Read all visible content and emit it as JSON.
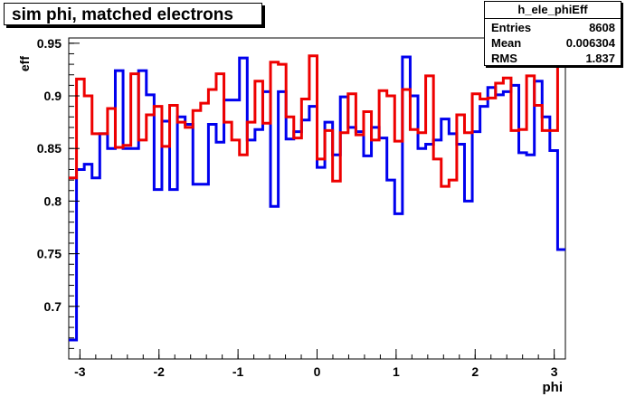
{
  "title": "sim phi, matched electrons",
  "stats": {
    "name": "h_ele_phiEff",
    "rows": [
      {
        "label": "Entries",
        "value": "8608"
      },
      {
        "label": "Mean",
        "value": "0.006304"
      },
      {
        "label": "RMS",
        "value": "1.837"
      }
    ]
  },
  "colors": {
    "series_blue": "#0000ee",
    "series_red": "#ee0000",
    "axis": "#000000"
  },
  "chart_data": {
    "type": "line",
    "step": true,
    "xlabel": "phi",
    "ylabel": "eff",
    "xlim": [
      -3.1416,
      3.1416
    ],
    "ylim": [
      0.65,
      0.955
    ],
    "xticks": [
      -3,
      -2,
      -1,
      0,
      1,
      2,
      3
    ],
    "xtick_labels": [
      "-3",
      "-2",
      "-1",
      "0",
      "1",
      "2",
      "3"
    ],
    "yticks": [
      0.7,
      0.75,
      0.8,
      0.85,
      0.9,
      0.95
    ],
    "ytick_labels": [
      "0.7",
      "0.75",
      "0.8",
      "0.85",
      "0.9",
      "0.95"
    ],
    "bins": 64,
    "series": [
      {
        "color": "#0000ee",
        "values": [
          0.668,
          0.83,
          0.835,
          0.822,
          0.864,
          0.85,
          0.924,
          0.85,
          0.85,
          0.924,
          0.901,
          0.811,
          0.876,
          0.811,
          0.88,
          0.873,
          0.816,
          0.816,
          0.873,
          0.856,
          0.896,
          0.896,
          0.936,
          0.858,
          0.868,
          0.904,
          0.795,
          0.904,
          0.859,
          0.866,
          0.877,
          0.89,
          0.832,
          0.875,
          0.844,
          0.899,
          0.87,
          0.866,
          0.843,
          0.87,
          0.86,
          0.82,
          0.788,
          0.937,
          0.9,
          0.85,
          0.854,
          0.858,
          0.878,
          0.864,
          0.854,
          0.8,
          0.866,
          0.89,
          0.908,
          0.901,
          0.904,
          0.91,
          0.846,
          0.844,
          0.914,
          0.88,
          0.848,
          0.754
        ]
      },
      {
        "color": "#ee0000",
        "values": [
          0.822,
          0.916,
          0.9,
          0.864,
          0.864,
          0.888,
          0.851,
          0.853,
          0.921,
          0.858,
          0.882,
          0.89,
          0.852,
          0.891,
          0.875,
          0.87,
          0.886,
          0.893,
          0.906,
          0.921,
          0.875,
          0.858,
          0.844,
          0.875,
          0.914,
          0.874,
          0.932,
          0.93,
          0.88,
          0.86,
          0.897,
          0.938,
          0.84,
          0.867,
          0.819,
          0.865,
          0.902,
          0.863,
          0.885,
          0.858,
          0.905,
          0.9,
          0.857,
          0.906,
          0.868,
          0.865,
          0.919,
          0.84,
          0.814,
          0.82,
          0.882,
          0.865,
          0.902,
          0.897,
          0.898,
          0.912,
          0.917,
          0.867,
          0.868,
          0.919,
          0.891,
          0.867,
          0.867,
          0.947
        ]
      }
    ]
  }
}
